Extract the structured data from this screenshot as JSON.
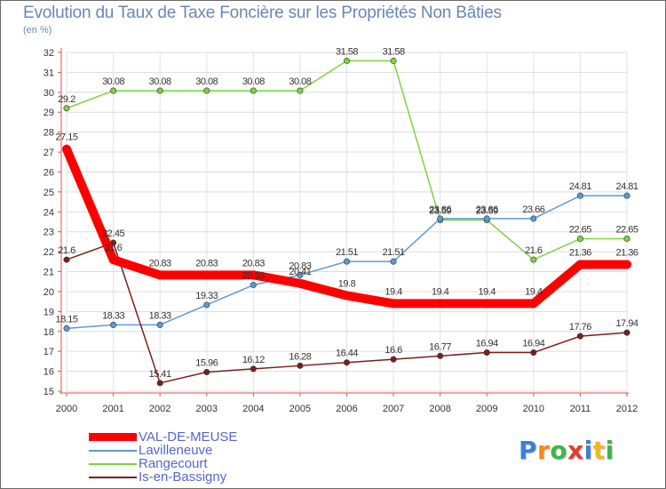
{
  "chart_data": {
    "type": "line",
    "title": "Evolution du Taux de Taxe Foncière sur les Propriétés Non Bâties",
    "ylabel": "(en %)",
    "xlabel": "",
    "x": [
      "2000",
      "2001",
      "2002",
      "2003",
      "2004",
      "2005",
      "2006",
      "2007",
      "2008",
      "2009",
      "2010",
      "2011",
      "2012"
    ],
    "ylim": [
      15,
      32
    ],
    "yticks": [
      "15",
      "16",
      "17",
      "18",
      "19",
      "20",
      "21",
      "22",
      "23",
      "24",
      "25",
      "26",
      "27",
      "28",
      "29",
      "30",
      "31",
      "32"
    ],
    "legend_position": "bottom-left",
    "series": [
      {
        "name": "VAL-DE-MEUSE",
        "color": "#ff0000",
        "values": [
          27.15,
          21.6,
          20.83,
          20.83,
          20.83,
          20.41,
          19.8,
          19.4,
          19.4,
          19.4,
          19.4,
          21.36,
          21.36
        ],
        "labels": [
          "27.15",
          "21.6",
          "20.83",
          "20.83",
          "20.83",
          "20.41",
          "19.8",
          "19.4",
          "19.4",
          "19.4",
          "19.4",
          "21.36",
          "21.36"
        ]
      },
      {
        "name": "Lavilleneuve",
        "color": "#5b9bd5",
        "values": [
          18.15,
          18.33,
          18.33,
          19.33,
          20.33,
          20.83,
          21.51,
          21.51,
          23.66,
          23.66,
          23.66,
          24.81,
          24.81
        ],
        "labels": [
          "18.15",
          "18.33",
          "18.33",
          "19.33",
          "20.33",
          "20.83",
          "21.51",
          "21.51",
          "23.66",
          "23.66",
          "23.66",
          "24.81",
          "24.81"
        ]
      },
      {
        "name": "Rangecourt",
        "color": "#7dd33f",
        "values": [
          29.2,
          30.08,
          30.08,
          30.08,
          30.08,
          30.08,
          31.58,
          31.58,
          23.59,
          23.59,
          21.6,
          22.65,
          22.65
        ],
        "labels": [
          "29.2",
          "30.08",
          "30.08",
          "30.08",
          "30.08",
          "30.08",
          "31.58",
          "31.58",
          "23.59",
          "23.59",
          "21.6",
          "22.65",
          "22.65"
        ]
      },
      {
        "name": "Is-en-Bassigny",
        "color": "#7a1f1f",
        "values": [
          21.6,
          22.45,
          15.41,
          15.96,
          16.12,
          16.28,
          16.44,
          16.6,
          16.77,
          16.94,
          16.94,
          17.76,
          17.94
        ],
        "labels": [
          "21.6",
          "22.45",
          "15.41",
          "15.96",
          "16.12",
          "16.28",
          "16.44",
          "16.6",
          "16.77",
          "16.94",
          "16.94",
          "17.76",
          "17.94"
        ]
      }
    ]
  },
  "logo": {
    "letters": [
      {
        "ch": "P",
        "color": "#3b7fd9"
      },
      {
        "ch": "r",
        "color": "#f08a1c"
      },
      {
        "ch": "o",
        "color": "#3fb54a"
      },
      {
        "ch": "x",
        "color": "#e23b2f"
      },
      {
        "ch": "i",
        "color": "#3b7fd9"
      },
      {
        "ch": "t",
        "color": "#f0b81c"
      },
      {
        "ch": "i",
        "color": "#3fb54a"
      }
    ]
  }
}
